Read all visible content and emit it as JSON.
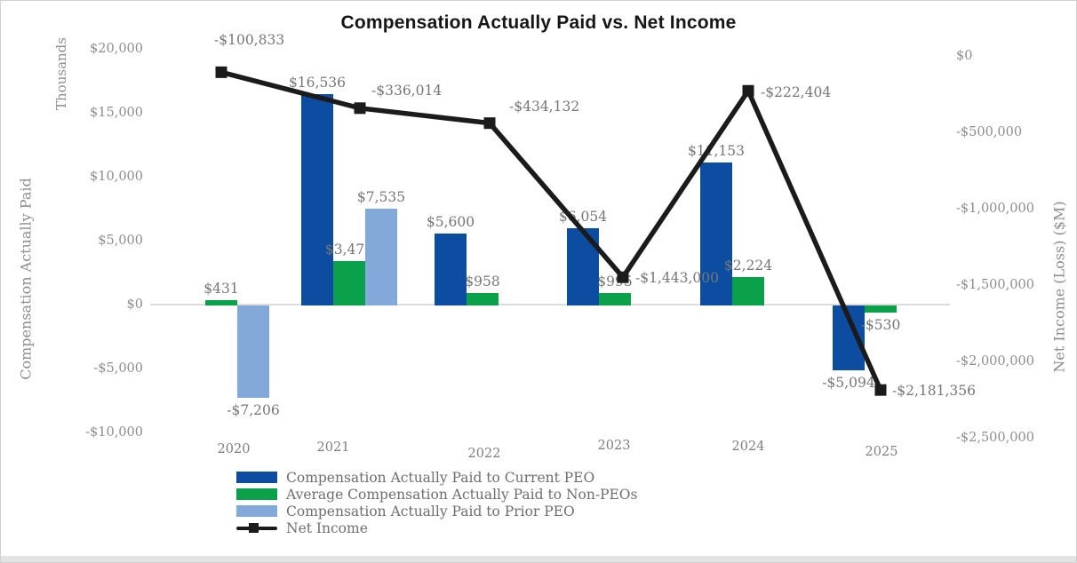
{
  "chart_data": {
    "type": "bar",
    "subtype": "combo-bar-line",
    "title": "Compensation Actually Paid vs. Net Income",
    "categories": [
      "2020",
      "2021",
      "2022",
      "2023",
      "2024",
      "2025"
    ],
    "left_axis": {
      "label": "Compensation Actually Paid",
      "units": "Thousands",
      "min": -10000,
      "max": 20000,
      "tick_step": 5000,
      "ticks": [
        "$20,000",
        "$15,000",
        "$10,000",
        "$5,000",
        "$0",
        "-$5,000",
        "-$10,000"
      ]
    },
    "right_axis": {
      "label": "Net Income (Loss)  ($M)",
      "min": -2500000,
      "max": 0,
      "tick_step": 500000,
      "ticks": [
        "$0",
        "-$500,000",
        "-$1,000,000",
        "-$1,500,000",
        "-$2,000,000",
        "-$2,500,000"
      ]
    },
    "grid": "zero-line-only",
    "legend_position": "bottom-left",
    "series": [
      {
        "name": "Compensation Actually Paid to Current PEO",
        "type": "bar",
        "axis": "left",
        "color": "#0d4da1",
        "values": [
          null,
          16536,
          5600,
          6054,
          11153,
          -5094
        ],
        "labels": [
          "",
          "$16,536",
          "$5,600",
          "$6,054",
          "$11,153",
          "-$5,094"
        ]
      },
      {
        "name": "Average Compensation Actually Paid to Non-PEOs",
        "type": "bar",
        "axis": "left",
        "color": "#0ba04a",
        "values": [
          431,
          3476,
          958,
          995,
          2224,
          -530
        ],
        "labels": [
          "$431",
          "$3,476",
          "$958",
          "$995",
          "$2,224",
          "-$530"
        ]
      },
      {
        "name": "Compensation Actually Paid to Prior PEO",
        "type": "bar",
        "axis": "left",
        "color": "#82a9da",
        "values": [
          -7206,
          7535,
          null,
          null,
          null,
          null
        ],
        "labels": [
          "-$7,206",
          "$7,535",
          "",
          "",
          "",
          ""
        ]
      },
      {
        "name": "Net Income",
        "type": "line",
        "axis": "right",
        "color": "#1b1b1b",
        "values": [
          -100833,
          -336014,
          -434132,
          -1443000,
          -222404,
          -2181356
        ],
        "labels": [
          "-$100,833",
          "-$336,014",
          "-$434,132",
          "-$1,443,000",
          "-$222,404",
          "-$2,181,356"
        ]
      }
    ]
  }
}
